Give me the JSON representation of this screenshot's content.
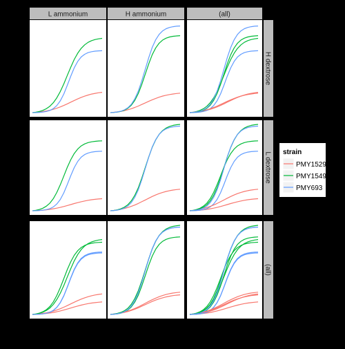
{
  "chart_data": {
    "type": "line",
    "facet_columns": [
      "L ammonium",
      "H ammonium",
      "(all)"
    ],
    "facet_rows": [
      "H dextrose",
      "L dextrose",
      "(all)"
    ],
    "legend": {
      "title": "strain",
      "entries": [
        {
          "name": "PMY1529",
          "color": "#F8766D"
        },
        {
          "name": "PMY1549",
          "color": "#00BA38"
        },
        {
          "name": "PMY693",
          "color": "#619CFF"
        }
      ],
      "placement": "right"
    },
    "panel_background": "#FFFFFF",
    "strip_background": "#BDBDBD",
    "xlim": [
      0,
      1
    ],
    "ylim": [
      0,
      1
    ],
    "x": [
      0,
      0.05,
      0.1,
      0.15,
      0.2,
      0.25,
      0.3,
      0.35,
      0.4,
      0.45,
      0.5,
      0.55,
      0.6,
      0.65,
      0.7,
      0.75,
      0.8,
      0.85,
      0.9,
      0.95,
      1.0
    ],
    "curve_params": {
      "PMY1529": [
        {
          "col": 0,
          "row": 0,
          "top": 0.23,
          "mid": 0.55,
          "k": 6
        },
        {
          "col": 1,
          "row": 0,
          "top": 0.22,
          "mid": 0.5,
          "k": 6
        },
        {
          "col": 0,
          "row": 1,
          "top": 0.14,
          "mid": 0.55,
          "k": 6
        },
        {
          "col": 1,
          "row": 1,
          "top": 0.25,
          "mid": 0.5,
          "k": 6
        }
      ],
      "PMY1549": [
        {
          "col": 0,
          "row": 0,
          "top": 0.84,
          "mid": 0.5,
          "k": 9
        },
        {
          "col": 1,
          "row": 0,
          "top": 0.87,
          "mid": 0.5,
          "k": 11
        },
        {
          "col": 0,
          "row": 1,
          "top": 0.81,
          "mid": 0.45,
          "k": 10
        },
        {
          "col": 1,
          "row": 1,
          "top": 1.0,
          "mid": 0.5,
          "k": 10
        }
      ],
      "PMY693": [
        {
          "col": 0,
          "row": 0,
          "top": 0.7,
          "mid": 0.52,
          "k": 12
        },
        {
          "col": 1,
          "row": 0,
          "top": 0.98,
          "mid": 0.5,
          "k": 11
        },
        {
          "col": 0,
          "row": 1,
          "top": 0.69,
          "mid": 0.52,
          "k": 12
        },
        {
          "col": 1,
          "row": 1,
          "top": 0.98,
          "mid": 0.5,
          "k": 11
        }
      ]
    }
  }
}
